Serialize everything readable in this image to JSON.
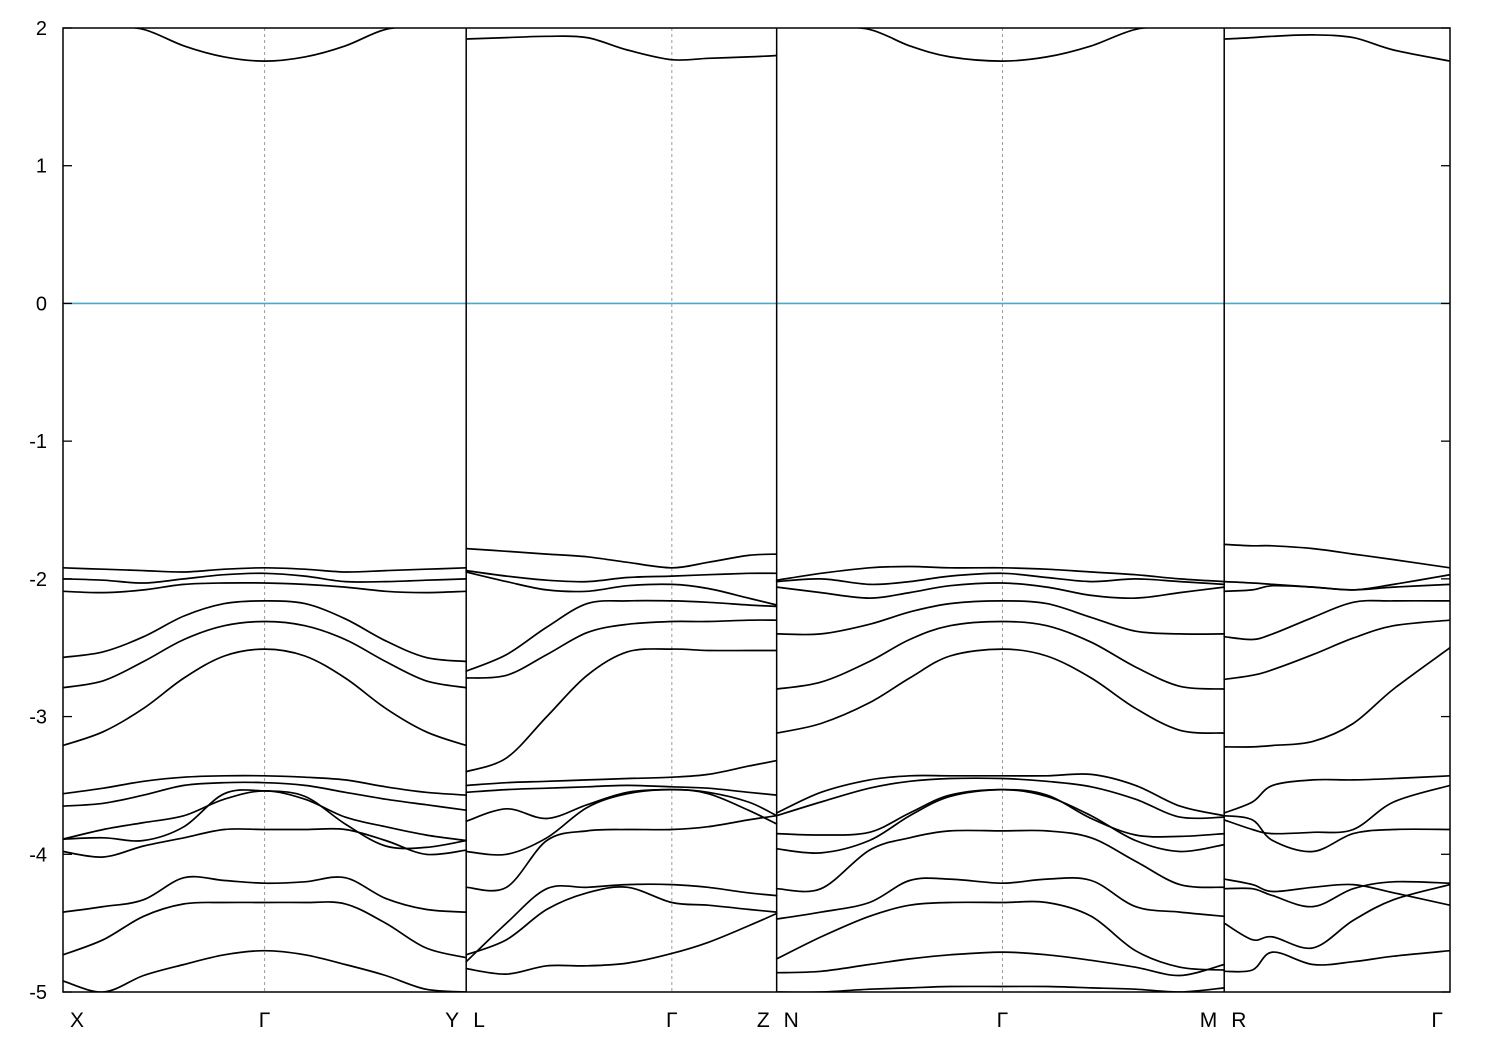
{
  "chart_data": {
    "type": "line",
    "title": "",
    "xlabel": "",
    "ylabel": "",
    "ylim": [
      -5,
      2
    ],
    "xlim": [
      0,
      3.44
    ],
    "yticks": [
      2,
      1,
      0,
      -1,
      -2,
      -3,
      -4,
      -5
    ],
    "ytick_labels": [
      "2",
      "1",
      "0",
      "-1",
      "-2",
      "-3",
      "-4",
      "-5"
    ],
    "fermi_level": 0,
    "fermi_color": "#4aa8c8",
    "band_color": "#000000",
    "grid": "vertical dotted lines at high-symmetry points",
    "k_points": [
      {
        "label": "X",
        "x": 0.0
      },
      {
        "label": "Γ",
        "x": 0.5
      },
      {
        "label": "Y",
        "x": 1.0
      },
      {
        "label": "L",
        "x": 1.0
      },
      {
        "label": "Γ",
        "x": 1.51
      },
      {
        "label": "Z",
        "x": 1.77
      },
      {
        "label": "N",
        "x": 1.77
      },
      {
        "label": "Γ",
        "x": 2.33
      },
      {
        "label": "M",
        "x": 2.88
      },
      {
        "label": "R",
        "x": 2.88
      },
      {
        "label": "Γ",
        "x": 3.44
      }
    ],
    "discontinuities": [
      1.0,
      1.77,
      2.88
    ],
    "segments": [
      {
        "path": "X-Γ-Y",
        "x": [
          0.0,
          0.1,
          0.2,
          0.3,
          0.4,
          0.5,
          0.6,
          0.7,
          0.8,
          0.9,
          1.0
        ],
        "bands": [
          [
            -4.92,
            -5.0,
            -4.88,
            -4.8,
            -4.73,
            -4.7,
            -4.73,
            -4.8,
            -4.88,
            -4.98,
            -5.0
          ],
          [
            -4.73,
            -4.62,
            -4.45,
            -4.36,
            -4.35,
            -4.35,
            -4.35,
            -4.36,
            -4.5,
            -4.68,
            -4.75
          ],
          [
            -4.42,
            -4.38,
            -4.33,
            -4.17,
            -4.19,
            -4.21,
            -4.2,
            -4.17,
            -4.32,
            -4.4,
            -4.42
          ],
          [
            -3.98,
            -4.02,
            -3.94,
            -3.88,
            -3.82,
            -3.82,
            -3.82,
            -3.82,
            -3.9,
            -4.0,
            -3.97
          ],
          [
            -3.89,
            -3.82,
            -3.77,
            -3.72,
            -3.6,
            -3.54,
            -3.6,
            -3.73,
            -3.8,
            -3.86,
            -3.9
          ],
          [
            -3.89,
            -3.88,
            -3.9,
            -3.8,
            -3.56,
            -3.54,
            -3.58,
            -3.78,
            -3.94,
            -3.95,
            -3.9
          ],
          [
            -3.65,
            -3.63,
            -3.57,
            -3.5,
            -3.48,
            -3.48,
            -3.5,
            -3.55,
            -3.6,
            -3.64,
            -3.68
          ],
          [
            -3.56,
            -3.52,
            -3.47,
            -3.44,
            -3.43,
            -3.43,
            -3.44,
            -3.46,
            -3.51,
            -3.55,
            -3.57
          ],
          [
            -3.21,
            -3.11,
            -2.94,
            -2.72,
            -2.56,
            -2.51,
            -2.56,
            -2.72,
            -2.94,
            -3.11,
            -3.21
          ],
          [
            -2.79,
            -2.74,
            -2.6,
            -2.44,
            -2.34,
            -2.31,
            -2.34,
            -2.44,
            -2.6,
            -2.74,
            -2.79
          ],
          [
            -2.57,
            -2.53,
            -2.42,
            -2.27,
            -2.18,
            -2.16,
            -2.18,
            -2.29,
            -2.45,
            -2.57,
            -2.6
          ],
          [
            -2.09,
            -2.1,
            -2.08,
            -2.04,
            -2.03,
            -2.03,
            -2.04,
            -2.06,
            -2.09,
            -2.1,
            -2.09
          ],
          [
            -2.0,
            -2.01,
            -2.03,
            -2.0,
            -1.97,
            -1.96,
            -1.98,
            -2.02,
            -2.02,
            -2.01,
            -2.0
          ],
          [
            -1.92,
            -1.93,
            -1.94,
            -1.95,
            -1.93,
            -1.92,
            -1.93,
            -1.95,
            -1.94,
            -1.93,
            -1.92
          ],
          [
            2.08,
            2.02,
            1.99,
            1.87,
            1.79,
            1.76,
            1.79,
            1.87,
            1.99,
            2.02,
            2.08
          ]
        ]
      },
      {
        "path": "L-Γ-Z",
        "x": [
          1.0,
          1.1,
          1.2,
          1.3,
          1.4,
          1.51,
          1.6,
          1.7,
          1.77
        ],
        "bands": [
          [
            -4.83,
            -4.87,
            -4.81,
            -4.81,
            -4.79,
            -4.72,
            -4.64,
            -4.52,
            -4.43
          ],
          [
            -4.78,
            -4.5,
            -4.25,
            -4.24,
            -4.22,
            -4.22,
            -4.24,
            -4.28,
            -4.3
          ],
          [
            -4.73,
            -4.62,
            -4.4,
            -4.28,
            -4.24,
            -4.35,
            -4.37,
            -4.4,
            -4.42
          ],
          [
            -4.24,
            -4.24,
            -3.9,
            -3.83,
            -3.82,
            -3.82,
            -3.8,
            -3.75,
            -3.72
          ],
          [
            -3.98,
            -4.0,
            -3.88,
            -3.66,
            -3.56,
            -3.53,
            -3.56,
            -3.68,
            -3.78
          ],
          [
            -3.76,
            -3.67,
            -3.74,
            -3.64,
            -3.55,
            -3.53,
            -3.55,
            -3.62,
            -3.72
          ],
          [
            -3.55,
            -3.53,
            -3.52,
            -3.51,
            -3.5,
            -3.51,
            -3.52,
            -3.55,
            -3.57
          ],
          [
            -3.5,
            -3.48,
            -3.47,
            -3.46,
            -3.45,
            -3.44,
            -3.42,
            -3.36,
            -3.32
          ],
          [
            -3.4,
            -3.3,
            -3.0,
            -2.7,
            -2.53,
            -2.51,
            -2.52,
            -2.52,
            -2.52
          ],
          [
            -2.72,
            -2.7,
            -2.55,
            -2.39,
            -2.33,
            -2.31,
            -2.31,
            -2.3,
            -2.3
          ],
          [
            -2.67,
            -2.55,
            -2.35,
            -2.18,
            -2.16,
            -2.16,
            -2.17,
            -2.19,
            -2.2
          ],
          [
            -1.95,
            -2.02,
            -2.08,
            -2.09,
            -2.05,
            -2.04,
            -2.07,
            -2.14,
            -2.19
          ],
          [
            -1.94,
            -1.98,
            -2.01,
            -2.02,
            -1.99,
            -1.98,
            -1.97,
            -1.96,
            -1.96
          ],
          [
            -1.78,
            -1.8,
            -1.82,
            -1.84,
            -1.88,
            -1.92,
            -1.88,
            -1.83,
            -1.82
          ],
          [
            1.92,
            1.93,
            1.94,
            1.93,
            1.84,
            1.77,
            1.78,
            1.79,
            1.8
          ]
        ]
      },
      {
        "path": "N-Γ-M",
        "x": [
          1.77,
          1.88,
          2.0,
          2.1,
          2.2,
          2.33,
          2.44,
          2.55,
          2.66,
          2.77,
          2.88
        ],
        "bands": [
          [
            -5.0,
            -5.0,
            -4.98,
            -4.97,
            -4.96,
            -4.96,
            -4.96,
            -4.97,
            -4.98,
            -5.0,
            -4.97
          ],
          [
            -4.86,
            -4.85,
            -4.8,
            -4.76,
            -4.73,
            -4.71,
            -4.73,
            -4.77,
            -4.82,
            -4.88,
            -4.8
          ],
          [
            -4.76,
            -4.6,
            -4.45,
            -4.37,
            -4.35,
            -4.35,
            -4.35,
            -4.45,
            -4.7,
            -4.82,
            -4.84
          ],
          [
            -4.47,
            -4.42,
            -4.35,
            -4.19,
            -4.18,
            -4.21,
            -4.18,
            -4.19,
            -4.38,
            -4.42,
            -4.45
          ],
          [
            -4.25,
            -4.25,
            -3.97,
            -3.88,
            -3.83,
            -3.83,
            -3.83,
            -3.88,
            -4.05,
            -4.22,
            -4.24
          ],
          [
            -3.96,
            -3.99,
            -3.9,
            -3.72,
            -3.58,
            -3.53,
            -3.58,
            -3.72,
            -3.9,
            -3.98,
            -3.93
          ],
          [
            -3.85,
            -3.86,
            -3.84,
            -3.7,
            -3.57,
            -3.53,
            -3.57,
            -3.74,
            -3.86,
            -3.87,
            -3.85
          ],
          [
            -3.72,
            -3.62,
            -3.52,
            -3.47,
            -3.45,
            -3.45,
            -3.47,
            -3.51,
            -3.6,
            -3.73,
            -3.73
          ],
          [
            -3.7,
            -3.55,
            -3.46,
            -3.43,
            -3.43,
            -3.43,
            -3.43,
            -3.42,
            -3.5,
            -3.65,
            -3.72
          ],
          [
            -3.12,
            -3.05,
            -2.9,
            -2.72,
            -2.56,
            -2.51,
            -2.56,
            -2.72,
            -2.94,
            -3.1,
            -3.12
          ],
          [
            -2.8,
            -2.75,
            -2.6,
            -2.44,
            -2.34,
            -2.31,
            -2.34,
            -2.46,
            -2.64,
            -2.78,
            -2.8
          ],
          [
            -2.4,
            -2.4,
            -2.33,
            -2.24,
            -2.18,
            -2.16,
            -2.18,
            -2.28,
            -2.38,
            -2.4,
            -2.4
          ],
          [
            -2.06,
            -2.1,
            -2.14,
            -2.1,
            -2.05,
            -2.03,
            -2.06,
            -2.12,
            -2.14,
            -2.1,
            -2.06
          ],
          [
            -2.02,
            -2.0,
            -2.04,
            -2.02,
            -1.98,
            -1.96,
            -1.99,
            -2.02,
            -2.0,
            -2.02,
            -2.04
          ],
          [
            -2.01,
            -1.96,
            -1.92,
            -1.91,
            -1.92,
            -1.92,
            -1.93,
            -1.95,
            -1.97,
            -2.0,
            -2.02
          ],
          [
            2.08,
            2.02,
            1.99,
            1.87,
            1.79,
            1.76,
            1.79,
            1.87,
            1.99,
            2.02,
            2.08
          ]
        ]
      },
      {
        "path": "R-Γ",
        "x": [
          2.88,
          2.95,
          3.0,
          3.1,
          3.2,
          3.3,
          3.44
        ],
        "bands": [
          [
            -4.85,
            -4.84,
            -4.71,
            -4.8,
            -4.78,
            -4.74,
            -4.7
          ],
          [
            -4.5,
            -4.62,
            -4.6,
            -4.68,
            -4.48,
            -4.33,
            -4.22
          ],
          [
            -4.25,
            -4.25,
            -4.3,
            -4.38,
            -4.25,
            -4.2,
            -4.21
          ],
          [
            -4.18,
            -4.22,
            -4.27,
            -4.24,
            -4.22,
            -4.28,
            -4.37
          ],
          [
            -3.75,
            -3.82,
            -3.85,
            -3.84,
            -3.82,
            -3.62,
            -3.5
          ],
          [
            -3.72,
            -3.75,
            -3.9,
            -3.98,
            -3.85,
            -3.82,
            -3.82
          ],
          [
            -3.7,
            -3.62,
            -3.5,
            -3.46,
            -3.46,
            -3.45,
            -3.43
          ],
          [
            -3.22,
            -3.22,
            -3.21,
            -3.18,
            -3.05,
            -2.8,
            -2.5
          ],
          [
            -2.73,
            -2.7,
            -2.66,
            -2.55,
            -2.43,
            -2.34,
            -2.3
          ],
          [
            -2.42,
            -2.44,
            -2.4,
            -2.28,
            -2.17,
            -2.16,
            -2.16
          ],
          [
            -2.09,
            -2.08,
            -2.05,
            -2.06,
            -2.08,
            -2.04,
            -1.97
          ],
          [
            -2.02,
            -2.03,
            -2.04,
            -2.06,
            -2.08,
            -2.06,
            -2.04
          ],
          [
            -1.75,
            -1.76,
            -1.76,
            -1.78,
            -1.82,
            -1.86,
            -1.92
          ],
          [
            1.92,
            1.93,
            1.94,
            1.95,
            1.93,
            1.84,
            1.76
          ]
        ]
      }
    ]
  }
}
